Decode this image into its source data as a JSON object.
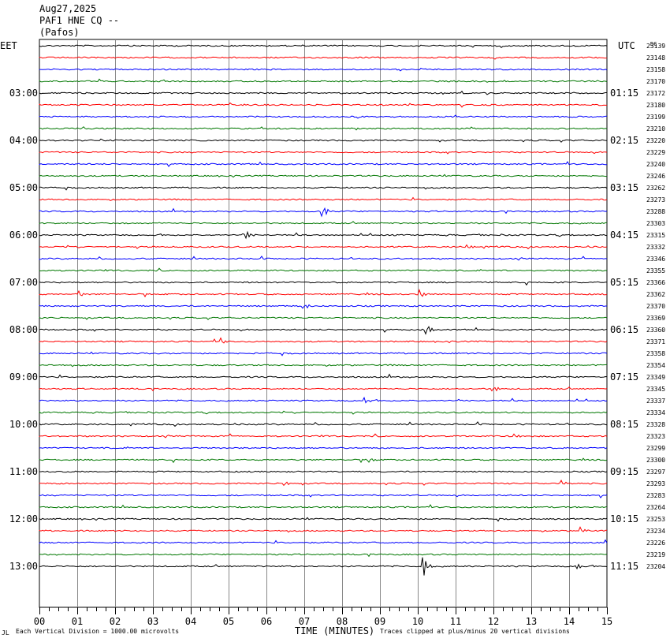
{
  "header": {
    "date": "Aug27,2025",
    "station": "PAF1 HNE CQ --",
    "location": "(Pafos)"
  },
  "left_axis_label": "EET",
  "right_axis_label": "UTC",
  "corner_label": "DC",
  "x_axis_title": "TIME (MINUTES)",
  "footer_left": "Each Vertical Division = 1000.00 microvolts",
  "footer_right": "Traces clipped at plus/minus 20 vertical divisions",
  "corner_mark": "JL",
  "colors": {
    "cycle": [
      "#000000",
      "#ff0000",
      "#0000ff",
      "#007700"
    ],
    "grid": "#888888"
  },
  "chart_data": {
    "type": "line",
    "title": "PAF1 HNE CQ --",
    "xlabel": "TIME (MINUTES)",
    "xlim": [
      0,
      15
    ],
    "x_ticks": [
      "00",
      "01",
      "02",
      "03",
      "04",
      "05",
      "06",
      "07",
      "08",
      "09",
      "10",
      "11",
      "12",
      "13",
      "14",
      "15"
    ],
    "left_time_labels": [
      "03:00",
      "04:00",
      "05:00",
      "06:00",
      "07:00",
      "08:00",
      "09:00",
      "10:00",
      "11:00",
      "12:00",
      "13:00"
    ],
    "right_time_labels": [
      "01:15",
      "02:15",
      "03:15",
      "04:15",
      "05:15",
      "06:15",
      "07:15",
      "08:15",
      "09:15",
      "10:15",
      "11:15"
    ],
    "dc_offsets": [
      23139,
      23148,
      23158,
      23170,
      23172,
      23180,
      23199,
      23210,
      23220,
      23229,
      23240,
      23246,
      23262,
      23273,
      23288,
      23303,
      23315,
      23332,
      23346,
      23355,
      23366,
      23362,
      23370,
      23369,
      23360,
      23371,
      23358,
      23354,
      23349,
      23345,
      23337,
      23334,
      23328,
      23323,
      23299,
      23300,
      23297,
      23293,
      23283,
      23264,
      23253,
      23234,
      23226,
      23219,
      23204
    ],
    "trace_count": 45,
    "events": [
      {
        "trace": 14,
        "minute": 7.5,
        "amplitude": 1.0
      },
      {
        "trace": 16,
        "minute": 5.45,
        "amplitude": 0.8
      },
      {
        "trace": 17,
        "minute": 11.3,
        "amplitude": 0.5
      },
      {
        "trace": 21,
        "minute": 1.05,
        "amplitude": 0.6
      },
      {
        "trace": 21,
        "minute": 10.05,
        "amplitude": 1.0
      },
      {
        "trace": 22,
        "minute": 7.0,
        "amplitude": 0.5
      },
      {
        "trace": 24,
        "minute": 10.25,
        "amplitude": 0.9
      },
      {
        "trace": 25,
        "minute": 4.8,
        "amplitude": 0.6
      },
      {
        "trace": 29,
        "minute": 12.0,
        "amplitude": 0.5
      },
      {
        "trace": 30,
        "minute": 8.6,
        "amplitude": 0.5
      },
      {
        "trace": 33,
        "minute": 12.55,
        "amplitude": 0.5
      },
      {
        "trace": 35,
        "minute": 8.75,
        "amplitude": 0.5
      },
      {
        "trace": 37,
        "minute": 6.5,
        "amplitude": 0.5
      },
      {
        "trace": 37,
        "minute": 13.8,
        "amplitude": 0.5
      },
      {
        "trace": 41,
        "minute": 14.3,
        "amplitude": 0.7
      },
      {
        "trace": 44,
        "minute": 10.15,
        "amplitude": 1.6
      },
      {
        "trace": 44,
        "minute": 14.2,
        "amplitude": 0.5
      }
    ]
  }
}
